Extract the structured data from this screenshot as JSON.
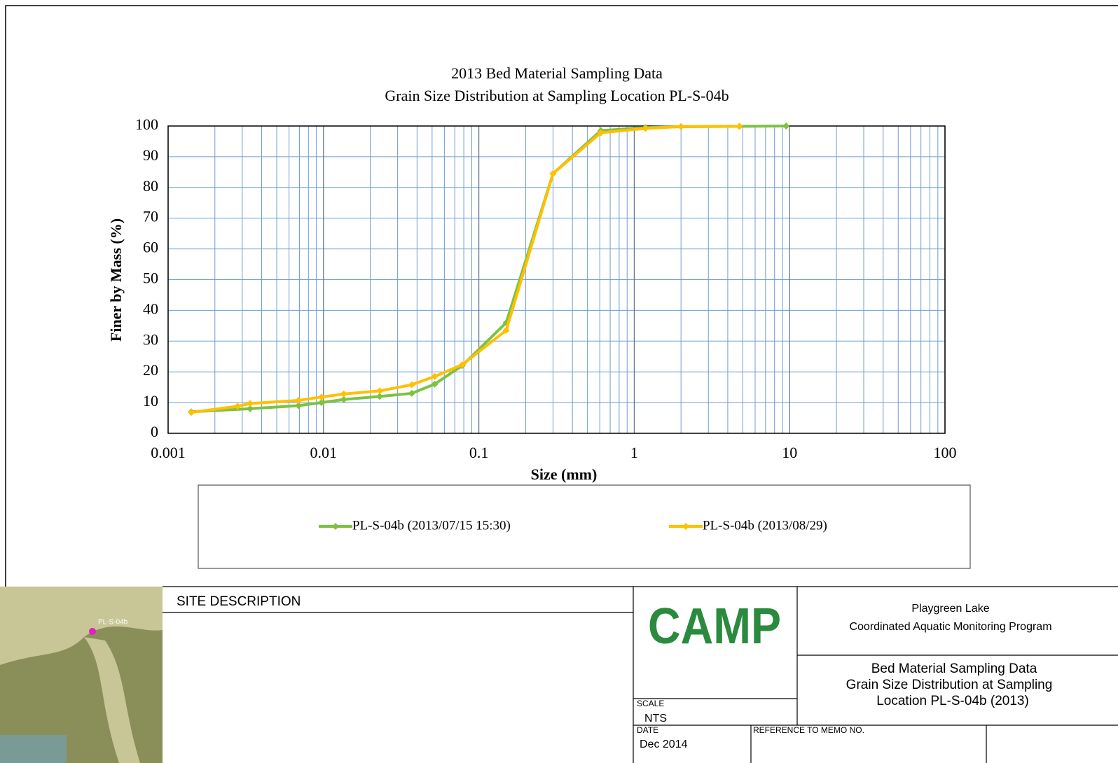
{
  "chart_data": {
    "type": "line",
    "title": "2013 Bed Material Sampling Data",
    "subtitle": "Grain Size Distribution at Sampling Location PL-S-04b",
    "x_label": "Size (mm)",
    "y_label": "Finer by Mass (%)",
    "x_scale": "log",
    "xlim": [
      0.001,
      100
    ],
    "xticks": [
      0.001,
      0.01,
      0.1,
      1,
      10,
      100
    ],
    "ylim": [
      0,
      100
    ],
    "yticks": [
      0,
      10,
      20,
      30,
      40,
      50,
      60,
      70,
      80,
      90,
      100
    ],
    "grid": true,
    "minor_grid": true,
    "legend": "bottom",
    "series": [
      {
        "name": "PL-S-04b (2013/07/15 15:30)",
        "color": "#7dc242",
        "x": [
          0.00141,
          0.00337,
          0.0069,
          0.0097,
          0.0135,
          0.023,
          0.037,
          0.052,
          0.078,
          0.15,
          0.3,
          0.61,
          1.18,
          2.0,
          4.75,
          9.5
        ],
        "values": [
          7,
          8,
          9,
          10,
          11,
          12,
          13,
          16,
          22,
          36,
          84.5,
          98.5,
          99.5,
          99.8,
          99.9,
          100
        ]
      },
      {
        "name": "PL-S-04b (2013/08/29)",
        "color": "#ffc000",
        "x": [
          0.00141,
          0.0028,
          0.00337,
          0.0069,
          0.0097,
          0.0135,
          0.023,
          0.037,
          0.052,
          0.078,
          0.15,
          0.3,
          0.61,
          1.18,
          2.0,
          4.75
        ],
        "values": [
          6.8,
          8.8,
          9.7,
          10.7,
          11.8,
          12.8,
          13.8,
          15.8,
          18.5,
          22.3,
          33.5,
          84.5,
          97.8,
          99.2,
          99.8,
          99.9
        ]
      }
    ]
  },
  "title_block": {
    "site_description": "SITE DESCRIPTION",
    "map_label": "PL-S-04b",
    "logo": "CAMP",
    "project": [
      "Playgreen Lake",
      "Coordinated Aquatic Monitoring Program"
    ],
    "drawing_title": [
      "Bed Material Sampling Data",
      "Grain Size Distribution at Sampling",
      "Location PL-S-04b (2013)"
    ],
    "scale_label": "SCALE",
    "scale": "NTS",
    "date_label": "DATE",
    "date": "Dec 2014",
    "memo_label": "REFERENCE TO MEMO NO."
  }
}
